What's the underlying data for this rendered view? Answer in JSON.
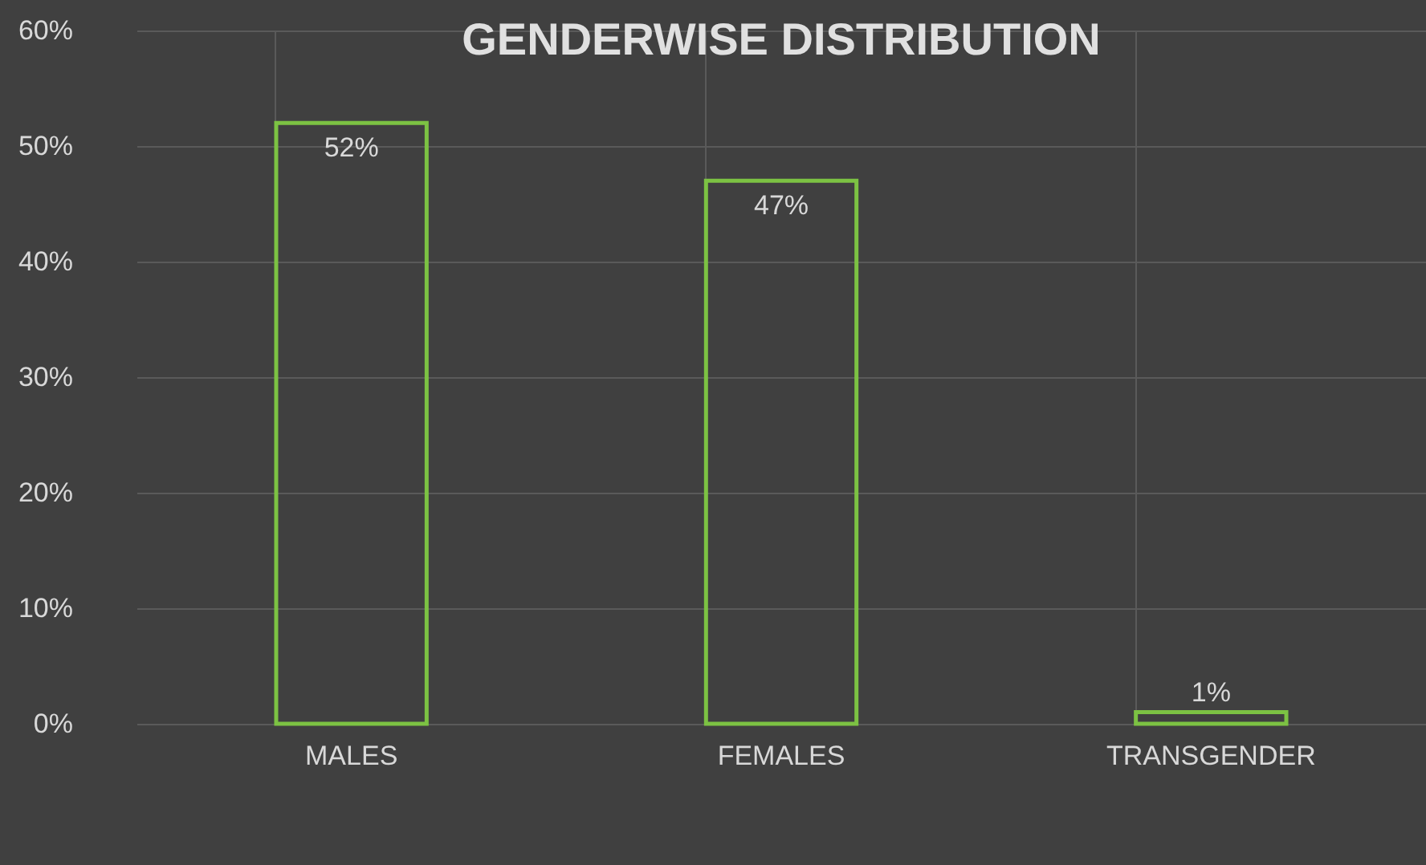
{
  "chart_data": {
    "type": "bar",
    "title": "GENDERWISE DISTRIBUTION",
    "categories": [
      "MALES",
      "FEMALES",
      "TRANSGENDER"
    ],
    "values": [
      52,
      47,
      1
    ],
    "value_labels": [
      "52%",
      "47%",
      "1%"
    ],
    "color": "#7cc243",
    "ylim": [
      0,
      60
    ],
    "yticks": [
      {
        "value": 0,
        "label": "0%"
      },
      {
        "value": 10,
        "label": "10%"
      },
      {
        "value": 20,
        "label": "20%"
      },
      {
        "value": 30,
        "label": "30%"
      },
      {
        "value": 40,
        "label": "40%"
      },
      {
        "value": 50,
        "label": "50%"
      },
      {
        "value": 60,
        "label": "60%"
      }
    ],
    "grid": true
  }
}
